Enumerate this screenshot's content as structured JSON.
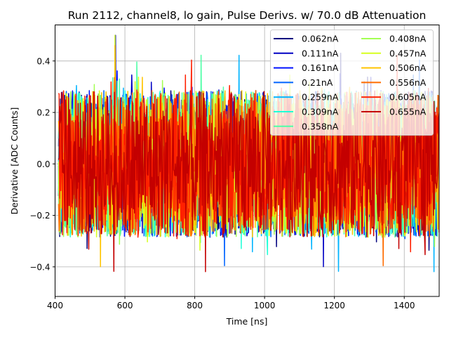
{
  "chart_data": {
    "type": "line",
    "title": "Run 2112, channel8, lo gain, Pulse Derivs. w/ 70.0 dB Attenuation",
    "xlabel": "Time [ns]",
    "ylabel": "Derivative [ADC Counts]",
    "xlim": [
      400,
      1500
    ],
    "ylim": [
      -0.515,
      0.54
    ],
    "xticks": [
      400,
      600,
      800,
      1000,
      1200,
      1400
    ],
    "xtick_labels": [
      "400",
      "600",
      "800",
      "1000",
      "1200",
      "1400"
    ],
    "yticks": [
      -0.4,
      -0.2,
      0.0,
      0.2,
      0.4
    ],
    "ytick_labels": [
      "−0.4",
      "−0.2",
      "0.0",
      "0.2",
      "0.4"
    ],
    "grid": true,
    "legend_placement": "top-right",
    "legend_columns": 2,
    "x_range_of_data": [
      410,
      1500
    ],
    "typical_amplitude": 0.3,
    "series": [
      {
        "name": "0.062nA",
        "color": "#00007f"
      },
      {
        "name": "0.111nA",
        "color": "#0000c4"
      },
      {
        "name": "0.161nA",
        "color": "#0010ff"
      },
      {
        "name": "0.21nA",
        "color": "#0064ff"
      },
      {
        "name": "0.259nA",
        "color": "#00b4ff"
      },
      {
        "name": "0.309nA",
        "color": "#1fffd7"
      },
      {
        "name": "0.358nA",
        "color": "#4fffa7"
      },
      {
        "name": "0.408nA",
        "color": "#a3ff53"
      },
      {
        "name": "0.457nA",
        "color": "#d7ff1f"
      },
      {
        "name": "0.506nA",
        "color": "#ffc400"
      },
      {
        "name": "0.556nA",
        "color": "#ff6c00"
      },
      {
        "name": "0.605nA",
        "color": "#ff2000"
      },
      {
        "name": "0.655nA",
        "color": "#c40000"
      }
    ]
  }
}
